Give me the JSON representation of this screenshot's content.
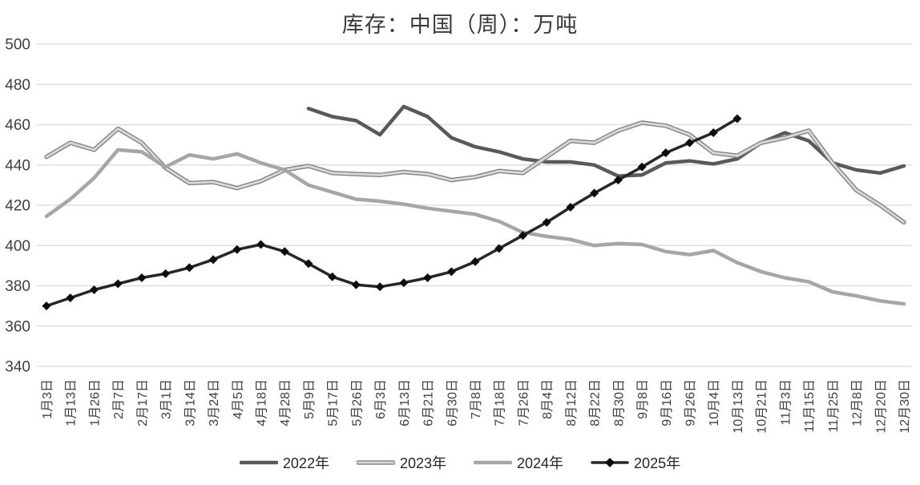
{
  "title": "库存：中国（周）：万吨",
  "chart_data": {
    "type": "line",
    "title": "库存：中国（周）：万吨",
    "categories": [
      "1月3日",
      "1月13日",
      "1月26日",
      "2月7日",
      "2月17日",
      "3月1日",
      "3月14日",
      "3月24日",
      "4月5日",
      "4月18日",
      "4月28日",
      "5月9日",
      "5月17日",
      "5月26日",
      "6月3日",
      "6月13日",
      "6月21日",
      "6月30日",
      "7月8日",
      "7月18日",
      "7月26日",
      "8月4日",
      "8月12日",
      "8月22日",
      "8月30日",
      "9月8日",
      "9月16日",
      "9月26日",
      "10月4日",
      "10月13日",
      "10月21日",
      "11月3日",
      "11月15日",
      "11月25日",
      "12月8日",
      "12月20日",
      "12月30日"
    ],
    "y_axis": {
      "min": 340,
      "max": 500,
      "step": 20,
      "tick_labels": [
        "500",
        "480",
        "460",
        "440",
        "420",
        "400",
        "380",
        "360",
        "340"
      ]
    },
    "grid": true,
    "legend_position": "bottom",
    "colors": {
      "grid": "#d9d9d9",
      "axis_text": "#3f3f3f"
    },
    "series": [
      {
        "name": "2022年",
        "color": "#595959",
        "style": "solid",
        "width": 4.5,
        "values": [
          null,
          null,
          null,
          null,
          null,
          null,
          null,
          null,
          null,
          null,
          null,
          468,
          464,
          462,
          455,
          469,
          464,
          453.5,
          449,
          446.5,
          443,
          441.5,
          441.5,
          440,
          434.5,
          435,
          441,
          442,
          440.5,
          443,
          451,
          456,
          452,
          441,
          437.5,
          436,
          439.5
        ]
      },
      {
        "name": "2023年",
        "color": "#d9d9d9",
        "outline_color": "#808080",
        "style": "double-outline",
        "width": 5.5,
        "values": [
          444,
          451,
          447.5,
          458,
          451,
          438.5,
          431,
          431.5,
          428.5,
          432,
          437.5,
          439.5,
          436,
          435.5,
          435,
          436.5,
          435.5,
          432.5,
          434,
          437,
          436,
          444,
          452,
          451,
          457,
          461,
          459.5,
          455,
          446,
          444.5,
          451,
          453.5,
          457,
          441,
          427.5,
          420,
          411.5
        ]
      },
      {
        "name": "2024年",
        "color": "#a6a6a6",
        "style": "solid",
        "width": 4.5,
        "values": [
          414.5,
          423,
          433.5,
          447.5,
          446.5,
          439,
          445,
          443,
          445.5,
          441,
          437.5,
          430,
          426.5,
          423,
          422,
          420.5,
          418.5,
          417,
          415.5,
          412,
          406.5,
          404.5,
          403,
          400,
          401,
          400.5,
          397,
          395.5,
          397.5,
          391.5,
          387,
          384,
          382,
          377,
          375,
          372.5,
          371
        ]
      },
      {
        "name": "2025年",
        "color": "#262626",
        "style": "solid",
        "width": 3.5,
        "marker": "diamond",
        "marker_color": "#0d0d0d",
        "marker_size": 5.5,
        "values": [
          370,
          374,
          378,
          381,
          384,
          386,
          389,
          393,
          398,
          400.5,
          397,
          391,
          384.5,
          380.5,
          379.5,
          381.5,
          384,
          387,
          392,
          398.5,
          405,
          411.5,
          419,
          426,
          432.5,
          439,
          446,
          451,
          456,
          463,
          null,
          null,
          null,
          null,
          null,
          null,
          null
        ]
      }
    ]
  }
}
